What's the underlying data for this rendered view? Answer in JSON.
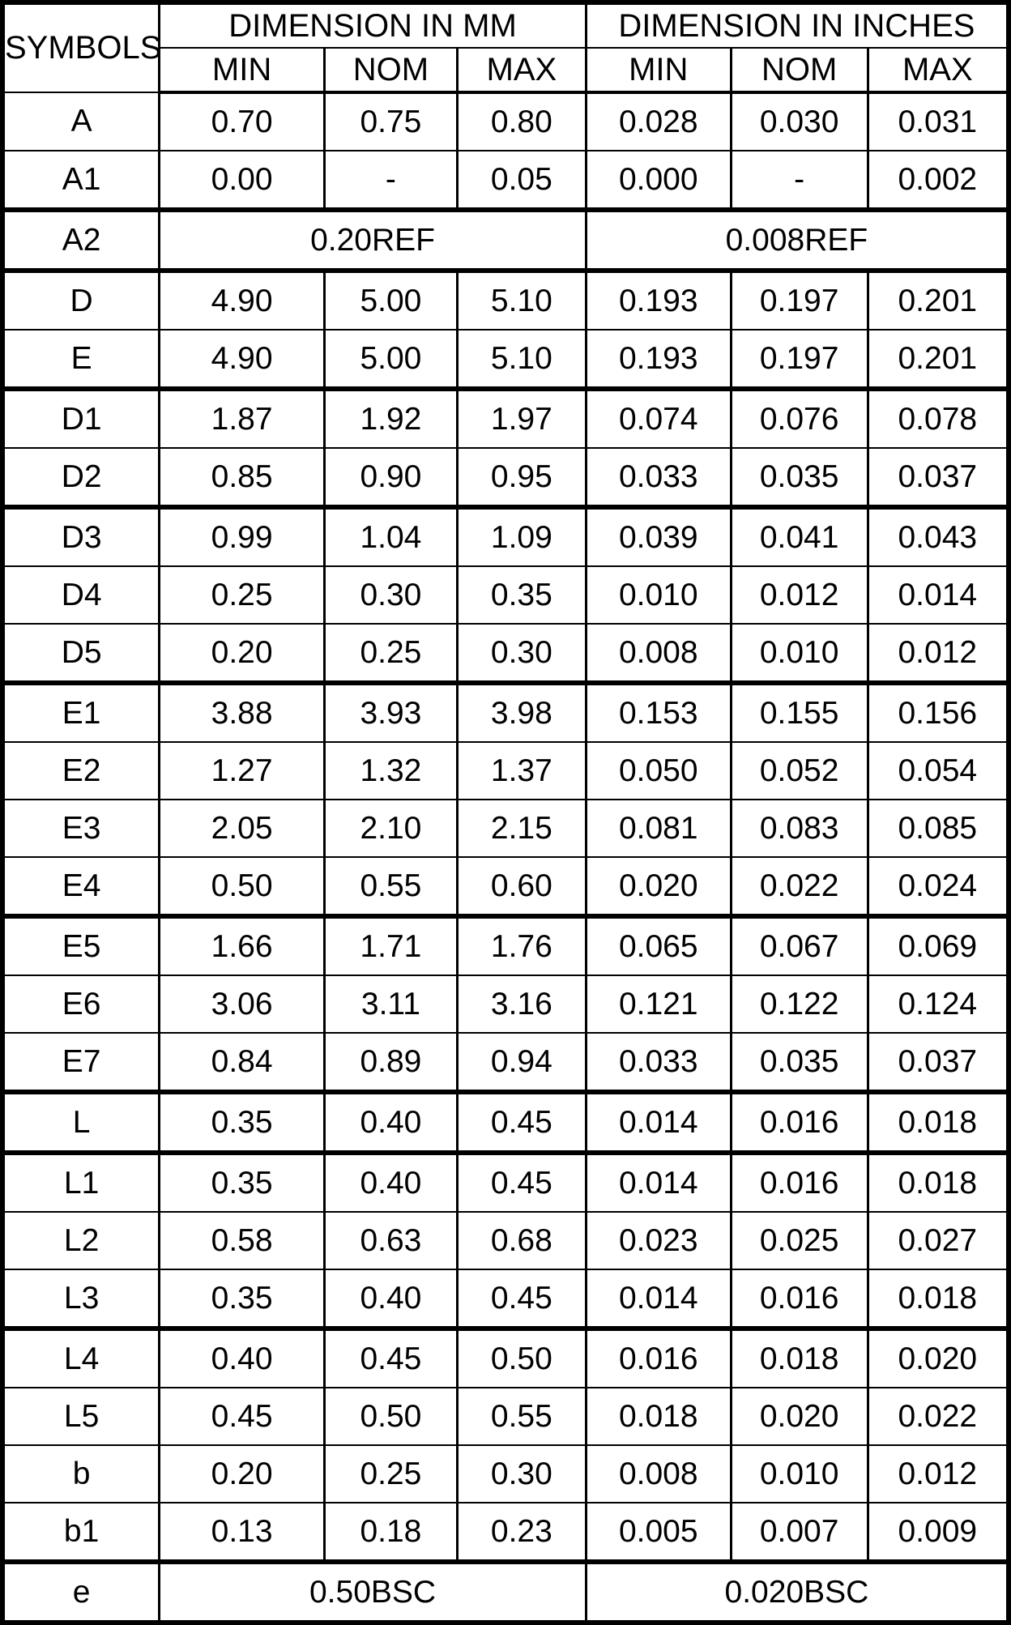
{
  "colors": {
    "border": "#000000",
    "background": "#ffffff",
    "text": "#000000"
  },
  "table": {
    "header": {
      "symbols": "SYMBOLS",
      "mm_section": "DIMENSION IN MM",
      "inches_section": "DIMENSION IN INCHES",
      "sub_headers": [
        "MIN",
        "NOM",
        "MAX",
        "MIN",
        "NOM",
        "MAX"
      ]
    },
    "rows": [
      {
        "symbol": "A",
        "mm": [
          "0.70",
          "0.75",
          "0.80"
        ],
        "inches": [
          "0.028",
          "0.030",
          "0.031"
        ],
        "thick_top": false
      },
      {
        "symbol": "A1",
        "mm": [
          "0.00",
          "-",
          "0.05"
        ],
        "inches": [
          "0.000",
          "-",
          "0.002"
        ],
        "thick_top": false
      },
      {
        "symbol": "A2",
        "mm_span": "0.20REF",
        "inches_span": "0.008REF",
        "thick_top": true
      },
      {
        "symbol": "D",
        "mm": [
          "4.90",
          "5.00",
          "5.10"
        ],
        "inches": [
          "0.193",
          "0.197",
          "0.201"
        ],
        "thick_top": true
      },
      {
        "symbol": "E",
        "mm": [
          "4.90",
          "5.00",
          "5.10"
        ],
        "inches": [
          "0.193",
          "0.197",
          "0.201"
        ],
        "thick_top": false
      },
      {
        "symbol": "D1",
        "mm": [
          "1.87",
          "1.92",
          "1.97"
        ],
        "inches": [
          "0.074",
          "0.076",
          "0.078"
        ],
        "thick_top": true
      },
      {
        "symbol": "D2",
        "mm": [
          "0.85",
          "0.90",
          "0.95"
        ],
        "inches": [
          "0.033",
          "0.035",
          "0.037"
        ],
        "thick_top": false
      },
      {
        "symbol": "D3",
        "mm": [
          "0.99",
          "1.04",
          "1.09"
        ],
        "inches": [
          "0.039",
          "0.041",
          "0.043"
        ],
        "thick_top": true
      },
      {
        "symbol": "D4",
        "mm": [
          "0.25",
          "0.30",
          "0.35"
        ],
        "inches": [
          "0.010",
          "0.012",
          "0.014"
        ],
        "thick_top": false
      },
      {
        "symbol": "D5",
        "mm": [
          "0.20",
          "0.25",
          "0.30"
        ],
        "inches": [
          "0.008",
          "0.010",
          "0.012"
        ],
        "thick_top": false
      },
      {
        "symbol": "E1",
        "mm": [
          "3.88",
          "3.93",
          "3.98"
        ],
        "inches": [
          "0.153",
          "0.155",
          "0.156"
        ],
        "thick_top": true
      },
      {
        "symbol": "E2",
        "mm": [
          "1.27",
          "1.32",
          "1.37"
        ],
        "inches": [
          "0.050",
          "0.052",
          "0.054"
        ],
        "thick_top": false
      },
      {
        "symbol": "E3",
        "mm": [
          "2.05",
          "2.10",
          "2.15"
        ],
        "inches": [
          "0.081",
          "0.083",
          "0.085"
        ],
        "thick_top": false
      },
      {
        "symbol": "E4",
        "mm": [
          "0.50",
          "0.55",
          "0.60"
        ],
        "inches": [
          "0.020",
          "0.022",
          "0.024"
        ],
        "thick_top": false
      },
      {
        "symbol": "E5",
        "mm": [
          "1.66",
          "1.71",
          "1.76"
        ],
        "inches": [
          "0.065",
          "0.067",
          "0.069"
        ],
        "thick_top": true
      },
      {
        "symbol": "E6",
        "mm": [
          "3.06",
          "3.11",
          "3.16"
        ],
        "inches": [
          "0.121",
          "0.122",
          "0.124"
        ],
        "thick_top": false
      },
      {
        "symbol": "E7",
        "mm": [
          "0.84",
          "0.89",
          "0.94"
        ],
        "inches": [
          "0.033",
          "0.035",
          "0.037"
        ],
        "thick_top": false
      },
      {
        "symbol": "L",
        "mm": [
          "0.35",
          "0.40",
          "0.45"
        ],
        "inches": [
          "0.014",
          "0.016",
          "0.018"
        ],
        "thick_top": true
      },
      {
        "symbol": "L1",
        "mm": [
          "0.35",
          "0.40",
          "0.45"
        ],
        "inches": [
          "0.014",
          "0.016",
          "0.018"
        ],
        "thick_top": true
      },
      {
        "symbol": "L2",
        "mm": [
          "0.58",
          "0.63",
          "0.68"
        ],
        "inches": [
          "0.023",
          "0.025",
          "0.027"
        ],
        "thick_top": false
      },
      {
        "symbol": "L3",
        "mm": [
          "0.35",
          "0.40",
          "0.45"
        ],
        "inches": [
          "0.014",
          "0.016",
          "0.018"
        ],
        "thick_top": false
      },
      {
        "symbol": "L4",
        "mm": [
          "0.40",
          "0.45",
          "0.50"
        ],
        "inches": [
          "0.016",
          "0.018",
          "0.020"
        ],
        "thick_top": true
      },
      {
        "symbol": "L5",
        "mm": [
          "0.45",
          "0.50",
          "0.55"
        ],
        "inches": [
          "0.018",
          "0.020",
          "0.022"
        ],
        "thick_top": false
      },
      {
        "symbol": "b",
        "mm": [
          "0.20",
          "0.25",
          "0.30"
        ],
        "inches": [
          "0.008",
          "0.010",
          "0.012"
        ],
        "thick_top": false
      },
      {
        "symbol": "b1",
        "mm": [
          "0.13",
          "0.18",
          "0.23"
        ],
        "inches": [
          "0.005",
          "0.007",
          "0.009"
        ],
        "thick_top": false
      },
      {
        "symbol": "e",
        "mm_span": "0.50BSC",
        "inches_span": "0.020BSC",
        "thick_top": true
      }
    ]
  }
}
